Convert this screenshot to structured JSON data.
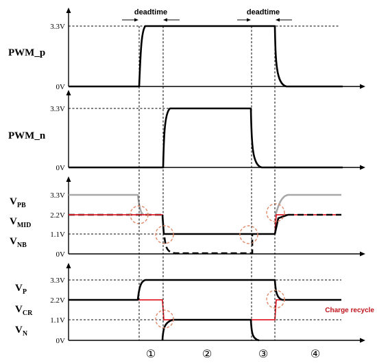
{
  "deadtime_label": "deadtime",
  "charge_recycle_label": "Charge recycle",
  "phases": [
    "①",
    "②",
    "③",
    "④"
  ],
  "panels": [
    {
      "id": "pwm-p",
      "ticks": [
        "3.3V",
        "0V"
      ],
      "signals": [
        {
          "main": "PWM_p",
          "sub": ""
        }
      ]
    },
    {
      "id": "pwm-n",
      "ticks": [
        "3.3V",
        "0V"
      ],
      "signals": [
        {
          "main": "PWM_n",
          "sub": ""
        }
      ]
    },
    {
      "id": "vpb-vmid-vnb",
      "ticks": [
        "3.3V",
        "2.2V",
        "1.1V",
        "0V"
      ],
      "signals": [
        {
          "main": "V",
          "sub": "PB"
        },
        {
          "main": "V",
          "sub": "MID"
        },
        {
          "main": "V",
          "sub": "NB"
        }
      ]
    },
    {
      "id": "vp-vcr-vn",
      "ticks": [
        "3.3V",
        "2.2V",
        "1.1V",
        "0V"
      ],
      "signals": [
        {
          "main": "V",
          "sub": "P"
        },
        {
          "main": "V",
          "sub": "CR"
        },
        {
          "main": "V",
          "sub": "N"
        }
      ]
    }
  ]
}
